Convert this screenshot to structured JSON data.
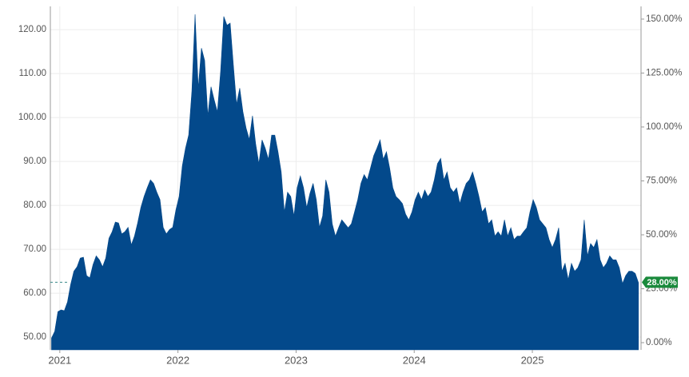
{
  "chart_data": {
    "type": "area",
    "color": "#03498b",
    "xlim": [
      2020.92,
      2025.92
    ],
    "xticks": [
      2021,
      2022,
      2023,
      2024,
      2025
    ],
    "ylim": [
      47.1,
      125.3
    ],
    "yticks": [
      {
        "value": 50,
        "label": "50.00"
      },
      {
        "value": 60,
        "label": "60.00"
      },
      {
        "value": 70,
        "label": "70.00"
      },
      {
        "value": 80,
        "label": "80.00"
      },
      {
        "value": 90,
        "label": "90.00"
      },
      {
        "value": 100,
        "label": "100.00"
      },
      {
        "value": 110,
        "label": "110.00"
      },
      {
        "value": 120,
        "label": "120.00"
      }
    ],
    "y2lim": [
      -3.33,
      155.9
    ],
    "y2ticks": [
      {
        "value": 0,
        "label": "0.00%"
      },
      {
        "value": 25,
        "label": "25.00%"
      },
      {
        "value": 50,
        "label": "50.00%"
      },
      {
        "value": 75,
        "label": "75.00%"
      },
      {
        "value": 100,
        "label": "100.00%"
      },
      {
        "value": 125,
        "label": "125.00%"
      },
      {
        "value": 150,
        "label": "150.00%"
      }
    ],
    "grid": true,
    "last_value": {
      "value": 28,
      "label": "28.00%",
      "axis": "y2",
      "color": "#1a8a3c"
    },
    "x": [
      2020.93,
      2020.957,
      2020.984,
      2021.011,
      2021.038,
      2021.065,
      2021.092,
      2021.119,
      2021.146,
      2021.173,
      2021.2,
      2021.227,
      2021.254,
      2021.281,
      2021.308,
      2021.335,
      2021.362,
      2021.389,
      2021.416,
      2021.443,
      2021.47,
      2021.497,
      2021.524,
      2021.551,
      2021.578,
      2021.605,
      2021.632,
      2021.659,
      2021.686,
      2021.713,
      2021.74,
      2021.767,
      2021.794,
      2021.821,
      2021.848,
      2021.875,
      2021.902,
      2021.929,
      2021.956,
      2021.983,
      2022.01,
      2022.037,
      2022.064,
      2022.091,
      2022.118,
      2022.145,
      2022.172,
      2022.199,
      2022.226,
      2022.253,
      2022.28,
      2022.307,
      2022.334,
      2022.361,
      2022.388,
      2022.415,
      2022.442,
      2022.469,
      2022.496,
      2022.523,
      2022.55,
      2022.577,
      2022.604,
      2022.631,
      2022.658,
      2022.685,
      2022.712,
      2022.739,
      2022.766,
      2022.793,
      2022.82,
      2022.847,
      2022.874,
      2022.901,
      2022.928,
      2022.955,
      2022.982,
      2023.009,
      2023.036,
      2023.063,
      2023.09,
      2023.117,
      2023.144,
      2023.171,
      2023.198,
      2023.225,
      2023.252,
      2023.279,
      2023.306,
      2023.333,
      2023.36,
      2023.387,
      2023.414,
      2023.441,
      2023.468,
      2023.495,
      2023.522,
      2023.549,
      2023.576,
      2023.603,
      2023.63,
      2023.657,
      2023.684,
      2023.711,
      2023.738,
      2023.765,
      2023.792,
      2023.819,
      2023.846,
      2023.873,
      2023.9,
      2023.927,
      2023.954,
      2023.981,
      2024.008,
      2024.035,
      2024.062,
      2024.089,
      2024.116,
      2024.143,
      2024.17,
      2024.197,
      2024.224,
      2024.251,
      2024.278,
      2024.305,
      2024.332,
      2024.359,
      2024.386,
      2024.413,
      2024.44,
      2024.467,
      2024.494,
      2024.521,
      2024.548,
      2024.575,
      2024.602,
      2024.629,
      2024.656,
      2024.683,
      2024.71,
      2024.737,
      2024.764,
      2024.791,
      2024.818,
      2024.845,
      2024.872,
      2024.899,
      2024.926,
      2024.953,
      2024.98,
      2025.007,
      2025.034,
      2025.061,
      2025.088,
      2025.115,
      2025.142,
      2025.169,
      2025.196,
      2025.223,
      2025.25,
      2025.277,
      2025.304,
      2025.331,
      2025.358,
      2025.385,
      2025.412,
      2025.439,
      2025.466,
      2025.493,
      2025.52,
      2025.547,
      2025.574,
      2025.601,
      2025.628,
      2025.655,
      2025.682,
      2025.709,
      2025.736,
      2025.763,
      2025.79,
      2025.817,
      2025.844,
      2025.871,
      2025.898
    ],
    "values": [
      49.8,
      51.3,
      55.8,
      56.2,
      56,
      58,
      62,
      65,
      66,
      68,
      68.2,
      64,
      63.5,
      66.5,
      68.5,
      67.6,
      66,
      68,
      72.5,
      74,
      76.2,
      76,
      73.5,
      74,
      75,
      71,
      73,
      76,
      79.5,
      82,
      84,
      85.8,
      85,
      83,
      81.3,
      75,
      73.5,
      74.5,
      75,
      79,
      82,
      89,
      93,
      96,
      106,
      123.5,
      106.7,
      115.8,
      113,
      100.4,
      107,
      104,
      101.3,
      110.4,
      123,
      121,
      121.5,
      112,
      103,
      106.7,
      101.3,
      97.6,
      95,
      100.4,
      94,
      89.5,
      94.9,
      93,
      90.5,
      96,
      96,
      92.2,
      87.6,
      78.5,
      83,
      82,
      77.6,
      84,
      86.7,
      84,
      79.5,
      82.7,
      85,
      81.3,
      75,
      77.6,
      85.8,
      83,
      75.8,
      73,
      74.9,
      76.7,
      75.8,
      74.9,
      75.8,
      78.5,
      81.3,
      85,
      87,
      85.8,
      88.5,
      91.3,
      93,
      94.9,
      90.5,
      92.2,
      88.5,
      84,
      82,
      81.3,
      80.4,
      78,
      76.7,
      78.5,
      81.3,
      83,
      81.3,
      83.5,
      82,
      83,
      85.8,
      89.5,
      90.7,
      85.8,
      87.6,
      84,
      83,
      84,
      80.4,
      83,
      85,
      85.8,
      87.6,
      85,
      82,
      78.5,
      79.5,
      75.8,
      76.7,
      73,
      74,
      73,
      76.7,
      73,
      74.9,
      72.2,
      73,
      73,
      74,
      74.9,
      78.5,
      81.3,
      79.5,
      76.7,
      75.8,
      74.9,
      72.2,
      70.4,
      72.2,
      74.9,
      65,
      66.8,
      63.1,
      66.8,
      65,
      65.8,
      67.6,
      76.7,
      68.5,
      71.3,
      70.4,
      72.2,
      67.6,
      65.8,
      66.8,
      68.5,
      67.6,
      67.6,
      65.8,
      62.2,
      64,
      65,
      65,
      64.5,
      62.4
    ]
  }
}
